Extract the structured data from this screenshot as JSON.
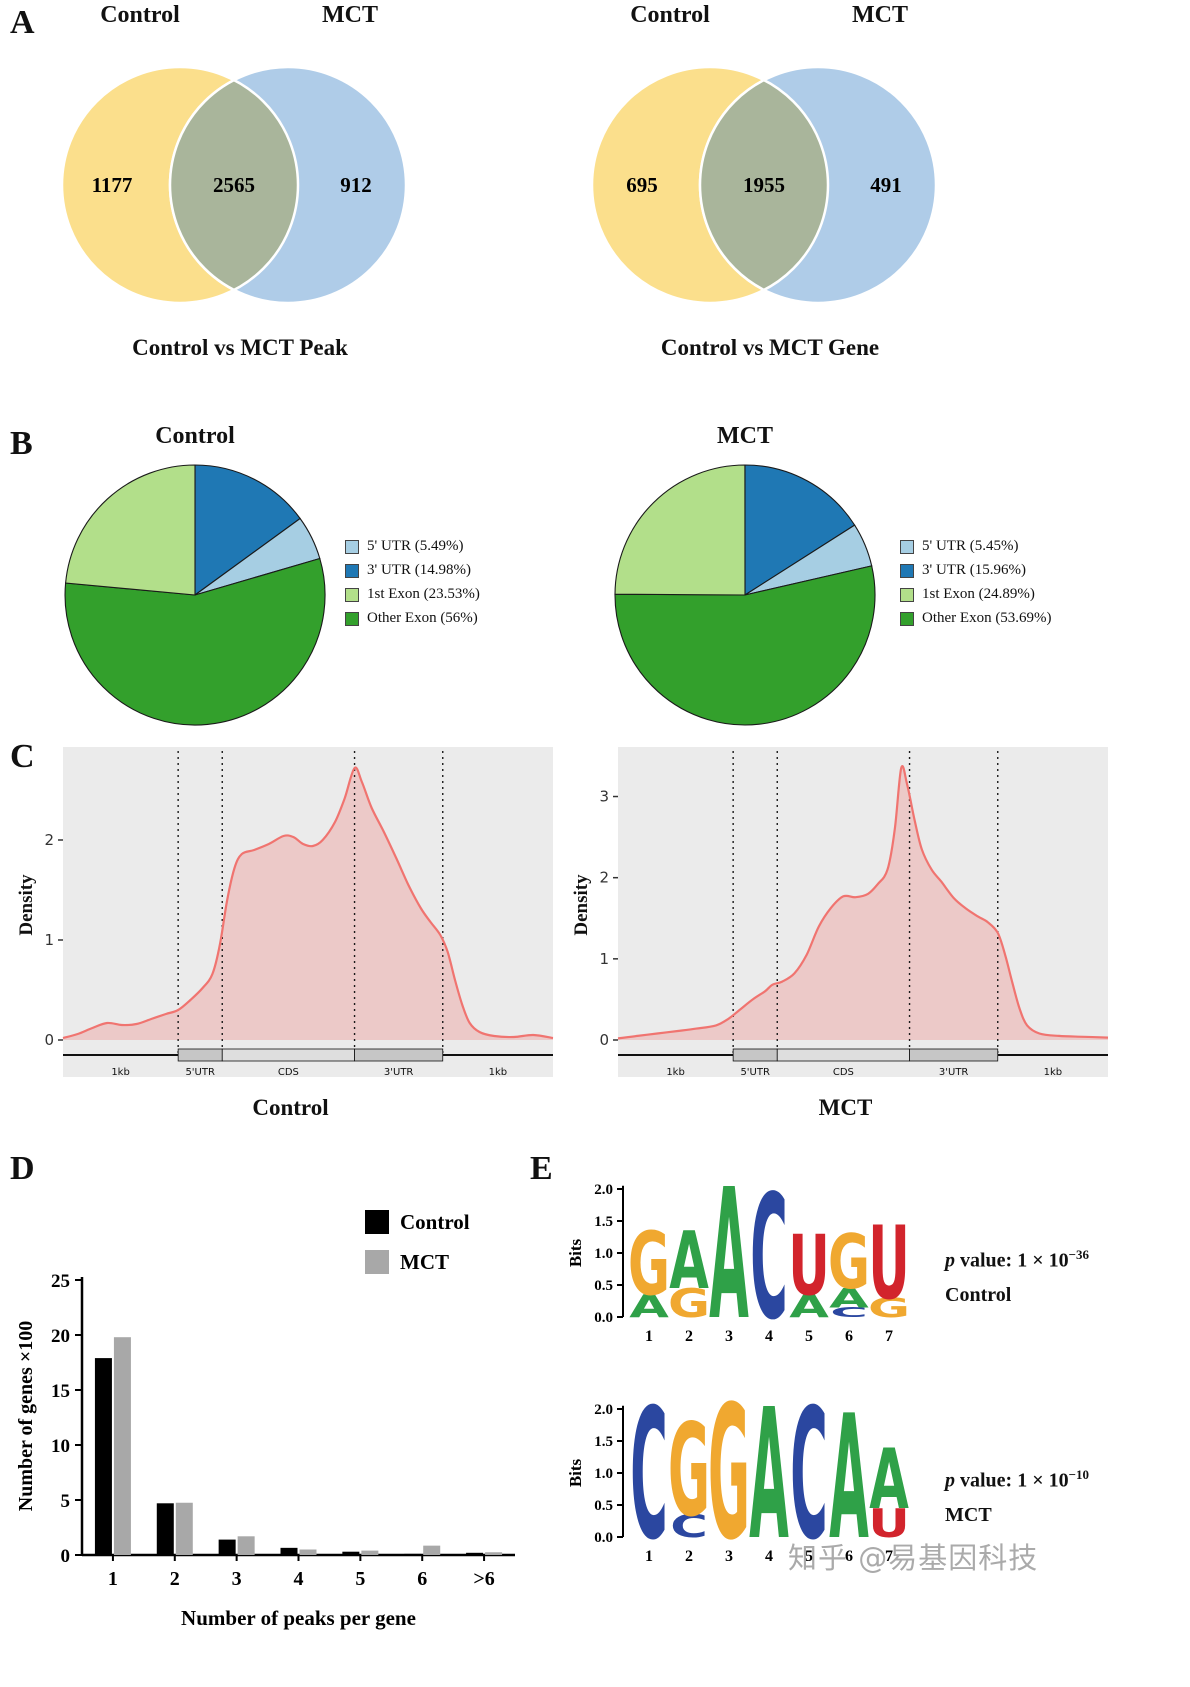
{
  "watermark": "知乎 @易基因科技",
  "panel_labels": {
    "a": "A",
    "b": "B",
    "c": "C",
    "d": "D",
    "e": "E"
  },
  "venn_colors": {
    "left": "#FBDF8C",
    "right": "#AFCCE8",
    "overlap": "#A9B59B"
  },
  "palette": {
    "curve": "#F07470",
    "plot_bg": "#EBEBEB",
    "bar_control": "#000000",
    "bar_mct": "#A8A8A8",
    "box_utr": "#C6C6C6",
    "box_cds": "#DEDEDE"
  },
  "letter_colors": {
    "A": "#2FA148",
    "C": "#2B47A0",
    "G": "#F0A830",
    "U": "#D2242C"
  },
  "chart_data": [
    {
      "type": "venn",
      "panel": "A",
      "header_left": "Control",
      "header_right": "MCT",
      "left_only": "1177",
      "overlap": "2565",
      "right_only": "912",
      "caption": "Control vs MCT Peak"
    },
    {
      "type": "venn",
      "panel": "A",
      "header_left": "Control",
      "header_right": "MCT",
      "left_only": "695",
      "overlap": "1955",
      "right_only": "491",
      "caption": "Control vs MCT Gene"
    },
    {
      "type": "pie",
      "title": "Control",
      "draw_order": [
        1,
        0,
        3,
        2
      ],
      "slices": [
        {
          "label": "5' UTR (5.49%)",
          "value": 5.49,
          "color": "#A6CEE3"
        },
        {
          "label": "3' UTR (14.98%)",
          "value": 14.98,
          "color": "#1F78B4"
        },
        {
          "label": "1st Exon (23.53%)",
          "value": 23.53,
          "color": "#B2DF8A"
        },
        {
          "label": "Other Exon (56%)",
          "value": 56,
          "color": "#33A02C"
        }
      ]
    },
    {
      "type": "pie",
      "title": "MCT",
      "draw_order": [
        1,
        0,
        3,
        2
      ],
      "slices": [
        {
          "label": "5' UTR (5.45%)",
          "value": 5.45,
          "color": "#A6CEE3"
        },
        {
          "label": "3' UTR (15.96%)",
          "value": 15.96,
          "color": "#1F78B4"
        },
        {
          "label": "1st Exon (24.89%)",
          "value": 24.89,
          "color": "#B2DF8A"
        },
        {
          "label": "Other Exon (53.69%)",
          "value": 53.69,
          "color": "#33A02C"
        }
      ]
    },
    {
      "type": "area",
      "title": "Control",
      "ylabel": "Density",
      "yticks": [
        0,
        1,
        2
      ],
      "ymax": 2.8,
      "vlines": [
        0.235,
        0.325,
        0.595,
        0.775
      ],
      "regions": [
        {
          "label": "1kb",
          "from": 0,
          "to": 0.235,
          "box": false
        },
        {
          "label": "5'UTR",
          "from": 0.235,
          "to": 0.325,
          "box": true
        },
        {
          "label": "CDS",
          "from": 0.325,
          "to": 0.595,
          "box": true
        },
        {
          "label": "3'UTR",
          "from": 0.595,
          "to": 0.775,
          "box": true
        },
        {
          "label": "1kb",
          "from": 0.775,
          "to": 1,
          "box": false
        }
      ],
      "points": [
        [
          0,
          0.02
        ],
        [
          0.03,
          0.06
        ],
        [
          0.06,
          0.12
        ],
        [
          0.09,
          0.17
        ],
        [
          0.12,
          0.15
        ],
        [
          0.15,
          0.16
        ],
        [
          0.18,
          0.21
        ],
        [
          0.21,
          0.26
        ],
        [
          0.235,
          0.3
        ],
        [
          0.26,
          0.4
        ],
        [
          0.285,
          0.52
        ],
        [
          0.305,
          0.66
        ],
        [
          0.32,
          0.95
        ],
        [
          0.335,
          1.4
        ],
        [
          0.35,
          1.72
        ],
        [
          0.365,
          1.86
        ],
        [
          0.39,
          1.9
        ],
        [
          0.42,
          1.96
        ],
        [
          0.45,
          2.04
        ],
        [
          0.47,
          2.03
        ],
        [
          0.49,
          1.96
        ],
        [
          0.51,
          1.94
        ],
        [
          0.53,
          2.0
        ],
        [
          0.555,
          2.18
        ],
        [
          0.575,
          2.42
        ],
        [
          0.595,
          2.72
        ],
        [
          0.61,
          2.58
        ],
        [
          0.63,
          2.32
        ],
        [
          0.655,
          2.08
        ],
        [
          0.68,
          1.82
        ],
        [
          0.705,
          1.55
        ],
        [
          0.73,
          1.32
        ],
        [
          0.75,
          1.18
        ],
        [
          0.77,
          1.05
        ],
        [
          0.785,
          0.88
        ],
        [
          0.8,
          0.6
        ],
        [
          0.815,
          0.35
        ],
        [
          0.83,
          0.17
        ],
        [
          0.85,
          0.08
        ],
        [
          0.88,
          0.04
        ],
        [
          0.92,
          0.03
        ],
        [
          0.96,
          0.05
        ],
        [
          1,
          0.02
        ]
      ]
    },
    {
      "type": "area",
      "title": "MCT",
      "ylabel": "Density",
      "yticks": [
        0,
        1,
        2,
        3
      ],
      "ymax": 3.45,
      "vlines": [
        0.235,
        0.325,
        0.595,
        0.775
      ],
      "regions": [
        {
          "label": "1kb",
          "from": 0,
          "to": 0.235,
          "box": false
        },
        {
          "label": "5'UTR",
          "from": 0.235,
          "to": 0.325,
          "box": true
        },
        {
          "label": "CDS",
          "from": 0.325,
          "to": 0.595,
          "box": true
        },
        {
          "label": "3'UTR",
          "from": 0.595,
          "to": 0.775,
          "box": true
        },
        {
          "label": "1kb",
          "from": 0.775,
          "to": 1,
          "box": false
        }
      ],
      "points": [
        [
          0,
          0.02
        ],
        [
          0.04,
          0.05
        ],
        [
          0.08,
          0.08
        ],
        [
          0.12,
          0.11
        ],
        [
          0.16,
          0.14
        ],
        [
          0.2,
          0.18
        ],
        [
          0.225,
          0.26
        ],
        [
          0.25,
          0.38
        ],
        [
          0.275,
          0.5
        ],
        [
          0.3,
          0.6
        ],
        [
          0.315,
          0.68
        ],
        [
          0.335,
          0.72
        ],
        [
          0.36,
          0.82
        ],
        [
          0.385,
          1.05
        ],
        [
          0.41,
          1.4
        ],
        [
          0.435,
          1.63
        ],
        [
          0.46,
          1.77
        ],
        [
          0.485,
          1.76
        ],
        [
          0.51,
          1.8
        ],
        [
          0.53,
          1.92
        ],
        [
          0.55,
          2.1
        ],
        [
          0.565,
          2.6
        ],
        [
          0.578,
          3.35
        ],
        [
          0.59,
          3.15
        ],
        [
          0.605,
          2.72
        ],
        [
          0.62,
          2.35
        ],
        [
          0.64,
          2.1
        ],
        [
          0.66,
          1.95
        ],
        [
          0.685,
          1.75
        ],
        [
          0.71,
          1.62
        ],
        [
          0.735,
          1.52
        ],
        [
          0.755,
          1.45
        ],
        [
          0.775,
          1.32
        ],
        [
          0.79,
          1.05
        ],
        [
          0.805,
          0.7
        ],
        [
          0.82,
          0.38
        ],
        [
          0.835,
          0.18
        ],
        [
          0.86,
          0.08
        ],
        [
          0.9,
          0.05
        ],
        [
          0.95,
          0.04
        ],
        [
          1,
          0.03
        ]
      ]
    },
    {
      "type": "bar",
      "categories": [
        "1",
        "2",
        "3",
        "4",
        "5",
        "6",
        ">6"
      ],
      "series": [
        {
          "name": "Control",
          "values": [
            17.9,
            4.7,
            1.4,
            0.65,
            0.3,
            0.1,
            0.2
          ]
        },
        {
          "name": "MCT",
          "values": [
            19.8,
            4.75,
            1.7,
            0.5,
            0.4,
            0.85,
            0.25
          ]
        }
      ],
      "ylabel": "Number of genes ×100",
      "xlabel": "Number of peaks per gene",
      "ylim": [
        0,
        25
      ],
      "yticks": [
        0,
        5,
        10,
        15,
        20,
        25
      ]
    },
    {
      "type": "sequence_logo",
      "name": "Control",
      "ylabel": "Bits",
      "yticks": [
        "0.0",
        "0.5",
        "1.0",
        "1.5",
        "2.0"
      ],
      "xticks": [
        "1",
        "2",
        "3",
        "4",
        "5",
        "6",
        "7"
      ],
      "p_prefix": "p",
      "p_body": " value: 1 × 10",
      "p_exp": "−36",
      "positions": [
        [
          {
            "ch": "G",
            "bits": 1.0
          },
          {
            "ch": "A",
            "bits": 0.35
          }
        ],
        [
          {
            "ch": "A",
            "bits": 0.9
          },
          {
            "ch": "G",
            "bits": 0.45
          }
        ],
        [
          {
            "ch": "A",
            "bits": 2.05
          }
        ],
        [
          {
            "ch": "C",
            "bits": 1.95
          }
        ],
        [
          {
            "ch": "U",
            "bits": 0.95
          },
          {
            "ch": "A",
            "bits": 0.35
          }
        ],
        [
          {
            "ch": "G",
            "bits": 0.85
          },
          {
            "ch": "A",
            "bits": 0.3
          },
          {
            "ch": "C",
            "bits": 0.15
          }
        ],
        [
          {
            "ch": "U",
            "bits": 1.15
          },
          {
            "ch": "G",
            "bits": 0.3
          }
        ]
      ]
    },
    {
      "type": "sequence_logo",
      "name": "MCT",
      "ylabel": "Bits",
      "yticks": [
        "0.0",
        "0.5",
        "1.0",
        "1.5",
        "2.0"
      ],
      "xticks": [
        "1",
        "2",
        "3",
        "4",
        "5",
        "6",
        "7"
      ],
      "p_prefix": "p",
      "p_body": " value: 1 × 10",
      "p_exp": "−10",
      "positions": [
        [
          {
            "ch": "C",
            "bits": 2.05
          }
        ],
        [
          {
            "ch": "G",
            "bits": 1.45
          },
          {
            "ch": "C",
            "bits": 0.35
          }
        ],
        [
          {
            "ch": "G",
            "bits": 2.1
          }
        ],
        [
          {
            "ch": "A",
            "bits": 2.05
          }
        ],
        [
          {
            "ch": "C",
            "bits": 2.05
          }
        ],
        [
          {
            "ch": "A",
            "bits": 1.95
          }
        ],
        [
          {
            "ch": "A",
            "bits": 0.95
          },
          {
            "ch": "U",
            "bits": 0.45
          }
        ]
      ]
    }
  ]
}
